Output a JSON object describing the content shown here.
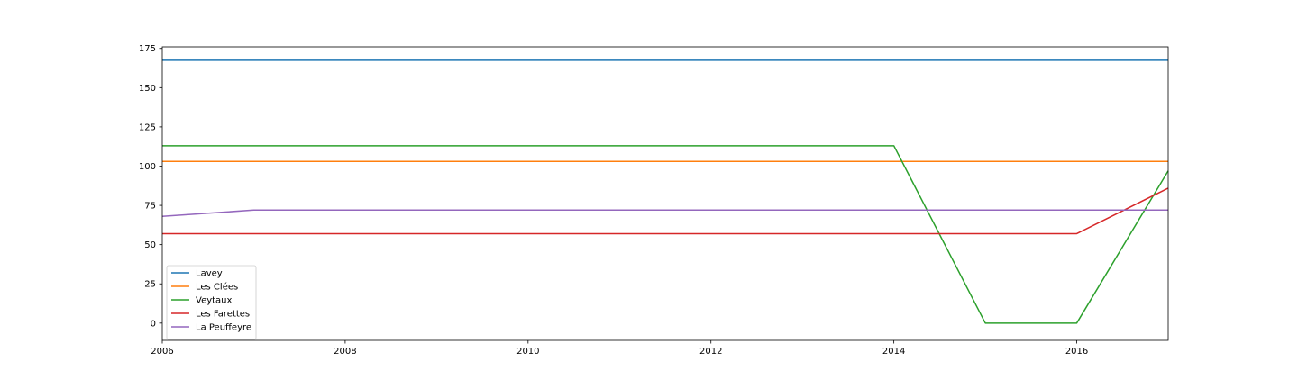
{
  "chart_data": {
    "type": "line",
    "title": "",
    "xlabel": "",
    "ylabel": "",
    "xlim": [
      2006,
      2017
    ],
    "ylim": [
      -11,
      176
    ],
    "x_ticks": [
      2006,
      2008,
      2010,
      2012,
      2014,
      2016
    ],
    "y_ticks": [
      0,
      25,
      50,
      75,
      100,
      125,
      150,
      175
    ],
    "grid": false,
    "legend_position": "lower-left",
    "x": [
      2006,
      2007,
      2008,
      2009,
      2010,
      2011,
      2012,
      2013,
      2014,
      2015,
      2016,
      2017
    ],
    "series": [
      {
        "name": "Lavey",
        "color": "#1f77b4",
        "values": [
          167.5,
          167.5,
          167.5,
          167.5,
          167.5,
          167.5,
          167.5,
          167.5,
          167.5,
          167.5,
          167.5,
          167.5
        ]
      },
      {
        "name": "Les Clées",
        "color": "#ff7f0e",
        "values": [
          103,
          103,
          103,
          103,
          103,
          103,
          103,
          103,
          103,
          103,
          103,
          103
        ]
      },
      {
        "name": "Veytaux",
        "color": "#2ca02c",
        "values": [
          113,
          113,
          113,
          113,
          113,
          113,
          113,
          113,
          113,
          0,
          0,
          97
        ]
      },
      {
        "name": "Les Farettes",
        "color": "#d62728",
        "values": [
          57,
          57,
          57,
          57,
          57,
          57,
          57,
          57,
          57,
          57,
          57,
          86
        ]
      },
      {
        "name": "La Peuffeyre",
        "color": "#9467bd",
        "values": [
          68,
          72,
          72,
          72,
          72,
          72,
          72,
          72,
          72,
          72,
          72,
          72
        ]
      }
    ]
  }
}
